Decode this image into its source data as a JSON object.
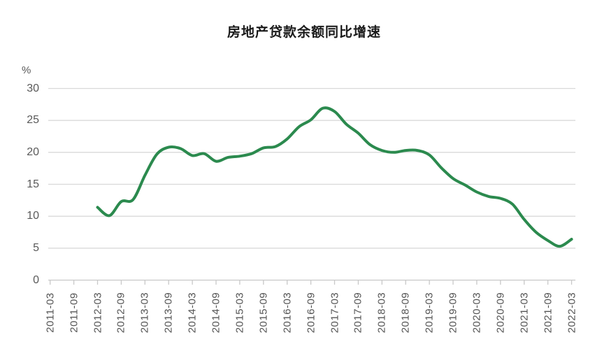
{
  "chart": {
    "title": "房地产贷款余额同比增速",
    "y_unit": "%"
  },
  "chart_data": {
    "type": "line",
    "title": "房地产贷款余额同比增速",
    "xlabel": "",
    "ylabel": "%",
    "ylim": [
      0,
      30
    ],
    "y_ticks": [
      0,
      5,
      10,
      15,
      20,
      25,
      30
    ],
    "x_tick_labels": [
      "2011-03",
      "2011-09",
      "2012-03",
      "2012-09",
      "2013-03",
      "2013-09",
      "2014-03",
      "2014-09",
      "2015-03",
      "2015-09",
      "2016-03",
      "2016-09",
      "2017-03",
      "2017-09",
      "2018-03",
      "2018-09",
      "2019-03",
      "2019-09",
      "2020-03",
      "2020-09",
      "2021-03",
      "2021-09",
      "2022-03"
    ],
    "grid": "horizontal",
    "legend": "none",
    "series": [
      {
        "name": "房地产贷款余额同比增速",
        "color": "#2b8a4e",
        "x": [
          "2012-03",
          "2012-06",
          "2012-09",
          "2012-12",
          "2013-03",
          "2013-06",
          "2013-09",
          "2013-12",
          "2014-03",
          "2014-06",
          "2014-09",
          "2014-12",
          "2015-03",
          "2015-06",
          "2015-09",
          "2015-12",
          "2016-03",
          "2016-06",
          "2016-09",
          "2016-12",
          "2017-03",
          "2017-06",
          "2017-09",
          "2017-12",
          "2018-03",
          "2018-06",
          "2018-09",
          "2018-12",
          "2019-03",
          "2019-06",
          "2019-09",
          "2019-12",
          "2020-03",
          "2020-06",
          "2020-09",
          "2020-12",
          "2021-03",
          "2021-06",
          "2021-09",
          "2021-12",
          "2022-03"
        ],
        "values": [
          11.4,
          10.1,
          12.3,
          12.6,
          16.4,
          19.7,
          20.8,
          20.6,
          19.5,
          19.8,
          18.6,
          19.2,
          19.4,
          19.8,
          20.7,
          20.9,
          22.1,
          24.0,
          25.1,
          26.9,
          26.4,
          24.4,
          23.0,
          21.2,
          20.3,
          20.0,
          20.3,
          20.3,
          19.6,
          17.6,
          15.9,
          14.9,
          13.8,
          13.1,
          12.8,
          11.9,
          9.5,
          7.5,
          6.2,
          5.3,
          6.4
        ]
      }
    ],
    "colors": {
      "line": "#2b8a4e",
      "gridline": "#d9d9d9",
      "axis": "#c8c8c8",
      "tick_label": "#595959",
      "title": "#1a1a1a"
    }
  }
}
